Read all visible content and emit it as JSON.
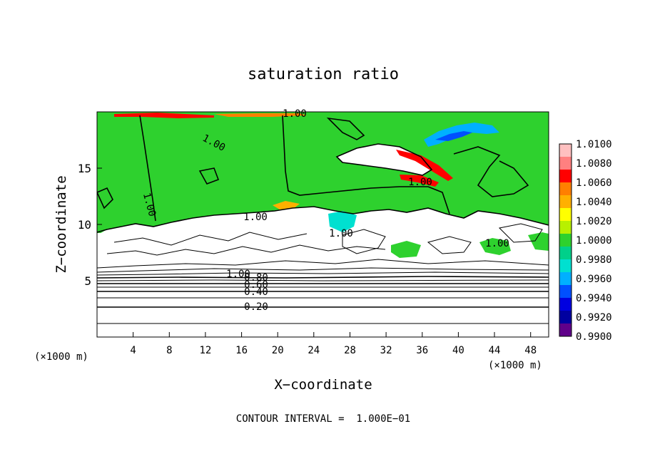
{
  "chart_data": {
    "type": "heatmap",
    "title": "saturation ratio",
    "xlabel": "X−coordinate",
    "ylabel": "Z−coordinate",
    "x_unit_left": "(×1000 m)",
    "x_unit_right": "(×1000 m)",
    "xlim": [
      0,
      50
    ],
    "ylim": [
      0,
      20
    ],
    "x_ticks": [
      "4",
      "8",
      "12",
      "16",
      "20",
      "24",
      "28",
      "32",
      "36",
      "40",
      "44",
      "48"
    ],
    "y_ticks": [
      "5",
      "10",
      "15"
    ],
    "footer": "CONTOUR INTERVAL =  1.000E−01",
    "contour_labels": [
      {
        "text": "1.00",
        "x": 20.5,
        "z": 19.7
      },
      {
        "text": "1.00",
        "x": 12.5,
        "z": 17.3
      },
      {
        "text": "1.00",
        "x": 5.8,
        "z": 11.5
      },
      {
        "text": "1.00",
        "x": 16.8,
        "z": 10.5
      },
      {
        "text": "1.00",
        "x": 26.5,
        "z": 9.2
      },
      {
        "text": "1.00",
        "x": 35.8,
        "z": 13.6
      },
      {
        "text": "1.00",
        "x": 44.2,
        "z": 8.2
      },
      {
        "text": "1.00",
        "x": 15.8,
        "z": 5.6
      },
      {
        "text": "0.80",
        "x": 17.5,
        "z": 5.2
      },
      {
        "text": "0.60",
        "x": 17.5,
        "z": 4.7
      },
      {
        "text": "0.40",
        "x": 17.5,
        "z": 4.0
      },
      {
        "text": "0.20",
        "x": 17.5,
        "z": 2.8
      }
    ],
    "colorbar": {
      "labels": [
        "1.0100",
        "1.0080",
        "1.0060",
        "1.0040",
        "1.0020",
        "1.0000",
        "0.9980",
        "0.9960",
        "0.9940",
        "0.9920",
        "0.9900"
      ],
      "colors": [
        "#ffc0c0",
        "#ff8080",
        "#ff0000",
        "#ff7f00",
        "#ffb000",
        "#ffff00",
        "#b8f000",
        "#2ed12e",
        "#00d08a",
        "#00e0d0",
        "#00b0ff",
        "#0050ff",
        "#0000e0",
        "#0000a0",
        "#60008a"
      ]
    }
  }
}
